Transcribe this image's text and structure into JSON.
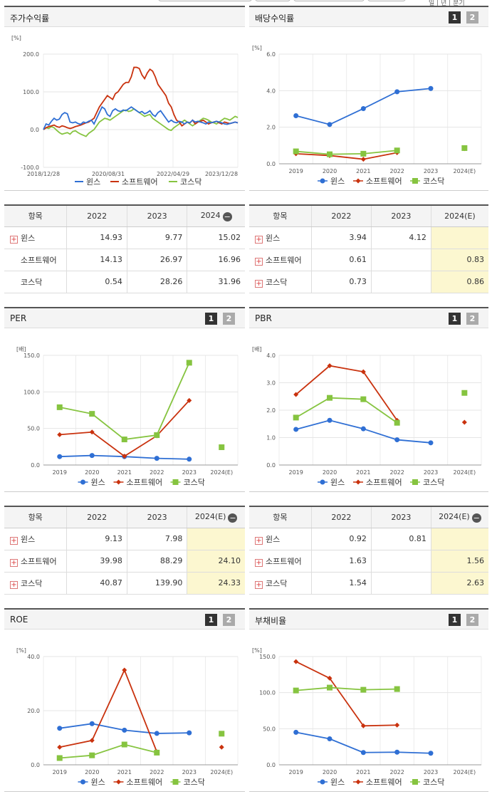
{
  "top_right_text": "일 | 년 | 분기",
  "legend_names": [
    "윈스",
    "소프트웨어",
    "코스닥"
  ],
  "series_colors": {
    "윈스": "#2f6fd4",
    "소프트웨어": "#c9320e",
    "코스닥": "#86c440"
  },
  "page_buttons": [
    "1",
    "2"
  ],
  "panels": {
    "stock": {
      "title": "주가수익률",
      "unit": "[%]"
    },
    "dividend": {
      "title": "배당수익률",
      "unit": "[%]"
    },
    "per": {
      "title": "PER",
      "unit": "[배]"
    },
    "pbr": {
      "title": "PBR",
      "unit": "[배]"
    },
    "roe": {
      "title": "ROE",
      "unit": "[%]"
    },
    "debt": {
      "title": "부채비율",
      "unit": "[%]"
    }
  },
  "tables": {
    "stock": {
      "headers": [
        "항목",
        "2022",
        "2023",
        "2024"
      ],
      "has_minus": true,
      "rows": [
        {
          "name": "윈스",
          "plus": true,
          "values": [
            "14.93",
            "9.77",
            "15.02"
          ]
        },
        {
          "name": "소프트웨어",
          "plus": false,
          "values": [
            "14.13",
            "26.97",
            "16.96"
          ]
        },
        {
          "name": "코스닥",
          "plus": false,
          "values": [
            "0.54",
            "28.26",
            "31.96"
          ]
        }
      ]
    },
    "dividend": {
      "headers": [
        "항목",
        "2022",
        "2023",
        "2024(E)"
      ],
      "has_minus": false,
      "rows": [
        {
          "name": "윈스",
          "plus": true,
          "values": [
            "3.94",
            "4.12",
            ""
          ]
        },
        {
          "name": "소프트웨어",
          "plus": true,
          "values": [
            "0.61",
            "",
            "0.83"
          ]
        },
        {
          "name": "코스닥",
          "plus": true,
          "values": [
            "0.73",
            "",
            "0.86"
          ]
        }
      ]
    },
    "per": {
      "headers": [
        "항목",
        "2022",
        "2023",
        "2024(E)"
      ],
      "has_minus": true,
      "rows": [
        {
          "name": "윈스",
          "plus": true,
          "values": [
            "9.13",
            "7.98",
            ""
          ]
        },
        {
          "name": "소프트웨어",
          "plus": true,
          "values": [
            "39.98",
            "88.29",
            "24.10"
          ]
        },
        {
          "name": "코스닥",
          "plus": true,
          "values": [
            "40.87",
            "139.90",
            "24.33"
          ]
        }
      ]
    },
    "pbr": {
      "headers": [
        "항목",
        "2022",
        "2023",
        "2024(E)"
      ],
      "has_minus": true,
      "rows": [
        {
          "name": "윈스",
          "plus": true,
          "values": [
            "0.92",
            "0.81",
            ""
          ]
        },
        {
          "name": "소프트웨어",
          "plus": true,
          "values": [
            "1.63",
            "",
            "1.56"
          ]
        },
        {
          "name": "코스닥",
          "plus": true,
          "values": [
            "1.54",
            "",
            "2.63"
          ]
        }
      ]
    }
  },
  "chart_data": [
    {
      "id": "stock",
      "type": "line",
      "title": "주가수익률",
      "ylabel": "[%]",
      "ylim": [
        -100,
        200
      ],
      "yticks": [
        -100,
        0,
        100,
        200
      ],
      "xticks": [
        "2018/12/28",
        "2020/08/31",
        "2022/04/29",
        "2023/12/28"
      ],
      "series": [
        {
          "name": "윈스",
          "color": "#2f6fd4",
          "values": [
            0,
            15,
            12,
            22,
            30,
            25,
            28,
            40,
            45,
            42,
            20,
            18,
            20,
            16,
            14,
            20,
            18,
            22,
            25,
            15,
            30,
            45,
            60,
            55,
            40,
            35,
            50,
            55,
            50,
            48,
            52,
            50,
            55,
            60,
            55,
            50,
            45,
            48,
            42,
            45,
            50,
            40,
            35,
            45,
            50,
            40,
            30,
            20,
            25,
            20,
            18,
            22,
            20,
            15,
            20,
            18,
            25,
            20,
            22,
            20,
            18,
            15,
            20,
            18,
            20,
            22,
            20,
            18,
            15,
            14,
            16,
            18,
            20,
            18
          ]
        },
        {
          "name": "소프트웨어",
          "color": "#c9320e",
          "values": [
            0,
            5,
            8,
            10,
            12,
            8,
            6,
            10,
            8,
            5,
            3,
            5,
            8,
            10,
            12,
            15,
            18,
            20,
            25,
            30,
            45,
            60,
            70,
            80,
            90,
            85,
            80,
            95,
            100,
            110,
            120,
            125,
            125,
            140,
            165,
            165,
            162,
            145,
            135,
            150,
            160,
            155,
            140,
            120,
            110,
            100,
            90,
            70,
            60,
            40,
            25,
            20,
            10,
            15,
            20,
            18,
            25,
            15,
            20,
            22,
            25,
            20,
            15,
            18,
            20,
            22,
            18,
            15,
            20,
            18,
            16,
            18,
            20,
            18
          ]
        },
        {
          "name": "코스닥",
          "color": "#86c440",
          "values": [
            0,
            5,
            3,
            8,
            5,
            -2,
            -8,
            -12,
            -10,
            -8,
            -12,
            -5,
            -3,
            -8,
            -12,
            -15,
            -18,
            -10,
            -5,
            0,
            10,
            20,
            25,
            30,
            28,
            25,
            30,
            35,
            40,
            45,
            50,
            52,
            48,
            50,
            55,
            50,
            45,
            40,
            35,
            38,
            40,
            30,
            25,
            20,
            15,
            10,
            5,
            0,
            -2,
            5,
            10,
            15,
            20,
            25,
            20,
            15,
            10,
            15,
            20,
            25,
            30,
            28,
            25,
            20,
            18,
            15,
            20,
            25,
            30,
            28,
            25,
            30,
            35,
            32
          ]
        }
      ]
    },
    {
      "id": "dividend",
      "type": "line",
      "title": "배당수익률",
      "ylabel": "[%]",
      "ylim": [
        0,
        6
      ],
      "yticks": [
        0,
        2,
        4,
        6
      ],
      "categories": [
        "2019",
        "2020",
        "2021",
        "2022",
        "2023",
        "2024(E)"
      ],
      "series": [
        {
          "name": "윈스",
          "color": "#2f6fd4",
          "marker": "circle",
          "values": [
            2.63,
            2.15,
            3.02,
            3.94,
            4.12,
            null
          ]
        },
        {
          "name": "소프트웨어",
          "color": "#c9320e",
          "marker": "diamond",
          "values": [
            0.55,
            0.45,
            0.25,
            0.61,
            null,
            0.83
          ]
        },
        {
          "name": "코스닥",
          "color": "#86c440",
          "marker": "square",
          "values": [
            0.68,
            0.52,
            0.55,
            0.73,
            null,
            0.86
          ]
        }
      ]
    },
    {
      "id": "per",
      "type": "line",
      "title": "PER",
      "ylabel": "[배]",
      "ylim": [
        0,
        150
      ],
      "yticks": [
        0,
        50,
        100,
        150
      ],
      "categories": [
        "2019",
        "2020",
        "2021",
        "2022",
        "2023",
        "2024(E)"
      ],
      "series": [
        {
          "name": "윈스",
          "color": "#2f6fd4",
          "marker": "circle",
          "values": [
            11.5,
            13,
            11.5,
            9.13,
            7.98,
            null
          ]
        },
        {
          "name": "소프트웨어",
          "color": "#c9320e",
          "marker": "diamond",
          "values": [
            41.5,
            45,
            12,
            39.98,
            88.29,
            24.1
          ]
        },
        {
          "name": "코스닥",
          "color": "#86c440",
          "marker": "square",
          "values": [
            79,
            70,
            35,
            40.87,
            139.9,
            24.33
          ]
        }
      ]
    },
    {
      "id": "pbr",
      "type": "line",
      "title": "PBR",
      "ylabel": "[배]",
      "ylim": [
        0,
        4
      ],
      "yticks": [
        0,
        1,
        2,
        3,
        4
      ],
      "categories": [
        "2019",
        "2020",
        "2021",
        "2022",
        "2023",
        "2024(E)"
      ],
      "series": [
        {
          "name": "윈스",
          "color": "#2f6fd4",
          "marker": "circle",
          "values": [
            1.3,
            1.63,
            1.32,
            0.92,
            0.81,
            null
          ]
        },
        {
          "name": "소프트웨어",
          "color": "#c9320e",
          "marker": "diamond",
          "values": [
            2.57,
            3.62,
            3.4,
            1.63,
            null,
            1.56
          ]
        },
        {
          "name": "코스닥",
          "color": "#86c440",
          "marker": "square",
          "values": [
            1.73,
            2.45,
            2.4,
            1.54,
            null,
            2.63
          ]
        }
      ]
    },
    {
      "id": "roe",
      "type": "line",
      "title": "ROE",
      "ylabel": "[%]",
      "ylim": [
        0,
        40
      ],
      "yticks": [
        0,
        20,
        40
      ],
      "categories": [
        "2019",
        "2020",
        "2021",
        "2022",
        "2023",
        "2024(E)"
      ],
      "series": [
        {
          "name": "윈스",
          "color": "#2f6fd4",
          "marker": "circle",
          "values": [
            13.5,
            15.2,
            12.8,
            11.6,
            11.8,
            null
          ]
        },
        {
          "name": "소프트웨어",
          "color": "#c9320e",
          "marker": "diamond",
          "values": [
            6.5,
            9,
            35,
            4.8,
            null,
            6.5
          ]
        },
        {
          "name": "코스닥",
          "color": "#86c440",
          "marker": "square",
          "values": [
            2.5,
            3.5,
            7.5,
            4.5,
            null,
            11.5
          ]
        }
      ]
    },
    {
      "id": "debt",
      "type": "line",
      "title": "부채비율",
      "ylabel": "[%]",
      "ylim": [
        0,
        150
      ],
      "yticks": [
        0,
        50,
        100,
        150
      ],
      "categories": [
        "2019",
        "2020",
        "2021",
        "2022",
        "2023",
        "2024(E)"
      ],
      "series": [
        {
          "name": "윈스",
          "color": "#2f6fd4",
          "marker": "circle",
          "values": [
            45,
            36,
            17,
            17.5,
            16,
            null
          ]
        },
        {
          "name": "소프트웨어",
          "color": "#c9320e",
          "marker": "diamond",
          "values": [
            143,
            120,
            54,
            55,
            null,
            null
          ]
        },
        {
          "name": "코스닥",
          "color": "#86c440",
          "marker": "square",
          "values": [
            103,
            107,
            104,
            105,
            null,
            null
          ]
        }
      ]
    }
  ]
}
